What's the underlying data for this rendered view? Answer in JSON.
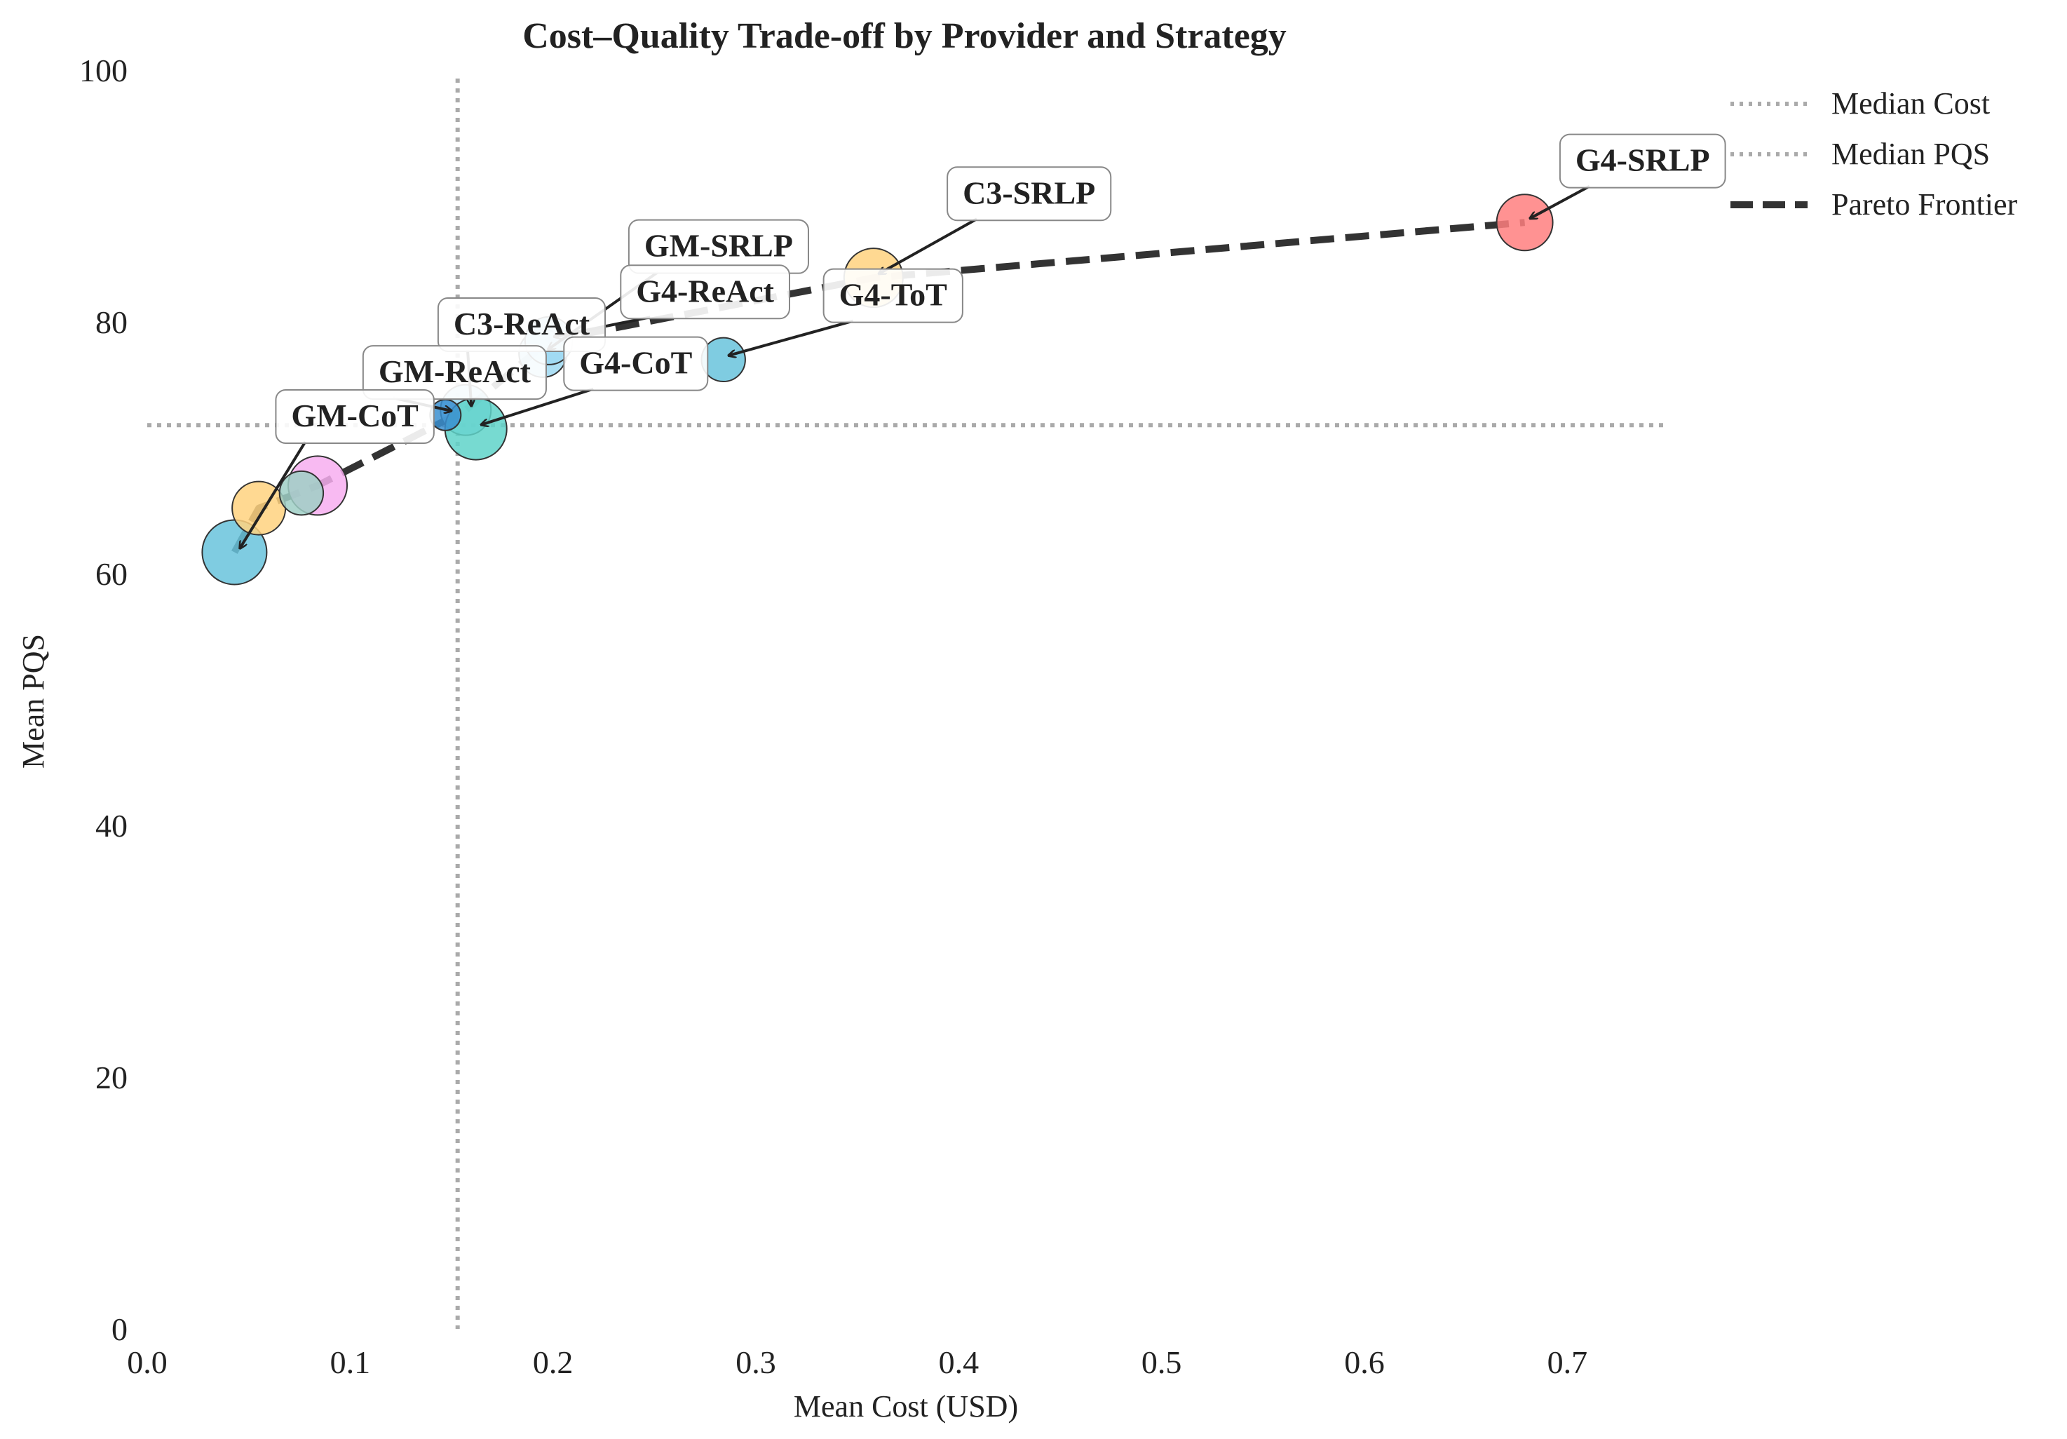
{
  "chart_data": {
    "type": "scatter",
    "title": "Cost–Quality Trade-off by Provider and Strategy",
    "xlabel": "Mean Cost (USD)",
    "ylabel": "Mean PQS",
    "xlim": [
      0.0,
      0.75
    ],
    "ylim": [
      0,
      100
    ],
    "x_ticks": [
      "0.0",
      "0.1",
      "0.2",
      "0.3",
      "0.4",
      "0.5",
      "0.6",
      "0.7"
    ],
    "y_ticks": [
      "0",
      "20",
      "40",
      "60",
      "80",
      "100"
    ],
    "grid": false,
    "legend_position": "top-right",
    "legend": [
      {
        "label": "Median Cost",
        "style": "dotted",
        "color": "#aaaaaa"
      },
      {
        "label": "Median PQS",
        "style": "dotted",
        "color": "#aaaaaa"
      },
      {
        "label": "Pareto Frontier",
        "style": "dashed",
        "color": "#333333"
      }
    ],
    "median_cost": 0.153,
    "median_pqs": 71.8,
    "points": [
      {
        "label": "G4-SRLP",
        "x": 0.679,
        "y": 87.9,
        "color": "#ff7f7f",
        "size": 1.0,
        "show_label": true,
        "text_x": 0.704,
        "text_y": 92.0
      },
      {
        "label": "C3-SRLP",
        "x": 0.358,
        "y": 83.5,
        "color": "#ffd27f",
        "size": 1.05,
        "show_label": true,
        "text_x": 0.402,
        "text_y": 89.4
      },
      {
        "label": "G4-ToT",
        "x": 0.284,
        "y": 77.0,
        "color": "#69c3dc",
        "size": 0.78,
        "show_label": true,
        "text_x": 0.341,
        "text_y": 81.3
      },
      {
        "label": "GM-SRLP",
        "x": 0.195,
        "y": 77.5,
        "color": "#9fd9f2",
        "size": 0.85,
        "show_label": true,
        "text_x": 0.245,
        "text_y": 85.2
      },
      {
        "label": "G4-ReAct",
        "x": 0.198,
        "y": 78.5,
        "color": "#9fd9f2",
        "size": 0.85,
        "show_label": true,
        "text_x": 0.241,
        "text_y": 81.6
      },
      {
        "label": "C3-ReAct",
        "x": 0.157,
        "y": 73.0,
        "color": "#9fd9f2",
        "size": 0.9,
        "show_label": true,
        "text_x": 0.151,
        "text_y": 79.0
      },
      {
        "label": "G4-CoT",
        "x": 0.162,
        "y": 71.5,
        "color": "#5fd3c9",
        "size": 1.1,
        "show_label": true,
        "text_x": 0.213,
        "text_y": 75.9
      },
      {
        "label": "GM-ReAct",
        "x": 0.147,
        "y": 72.6,
        "color": "#3a8fd0",
        "size": 0.55,
        "show_label": true,
        "text_x": 0.114,
        "text_y": 75.2
      },
      {
        "label": "GM-CoT",
        "x": 0.043,
        "y": 61.7,
        "color": "#69c3dc",
        "size": 1.15,
        "show_label": true,
        "text_x": 0.071,
        "text_y": 71.7
      },
      {
        "label": "C3-CoT",
        "x": 0.055,
        "y": 65.2,
        "color": "#ffd27f",
        "size": 0.95,
        "show_label": false
      },
      {
        "label": "C3-ToT",
        "x": 0.084,
        "y": 67.0,
        "color": "#f7aef0",
        "size": 1.05,
        "show_label": false
      },
      {
        "label": "GM-ToT",
        "x": 0.076,
        "y": 66.4,
        "color": "#9fcfc6",
        "size": 0.78,
        "show_label": false
      }
    ],
    "pareto_frontier": [
      {
        "x": 0.043,
        "y": 61.7
      },
      {
        "x": 0.055,
        "y": 65.2
      },
      {
        "x": 0.084,
        "y": 67.0
      },
      {
        "x": 0.157,
        "y": 73.0
      },
      {
        "x": 0.198,
        "y": 78.5
      },
      {
        "x": 0.358,
        "y": 83.5
      },
      {
        "x": 0.679,
        "y": 87.9
      }
    ]
  }
}
